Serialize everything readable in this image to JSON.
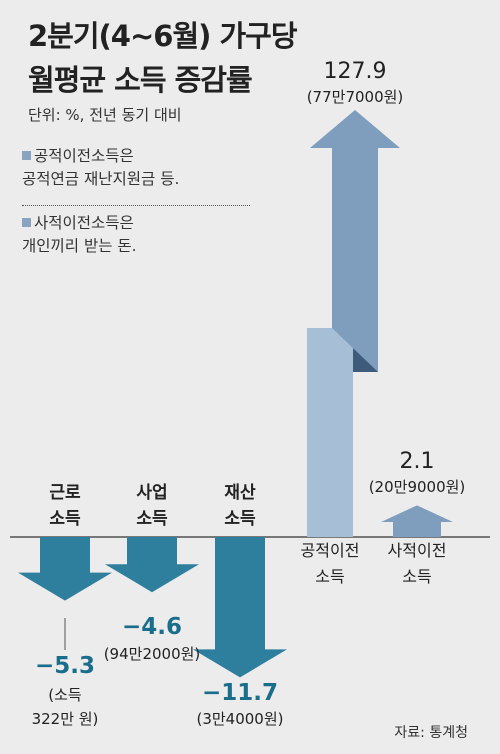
{
  "title_line1": "2분기(4~6월) 가구당",
  "title_line2": "월평균 소득 증감률",
  "unit": "단위: %, 전년 동기 대비",
  "notes": [
    {
      "lines": [
        "공적이전소득은",
        "공적연금 재난지원금 등."
      ]
    },
    {
      "lines": [
        "사적이전소득은",
        "개인끼리 받는 돈."
      ]
    }
  ],
  "source": "자료: 통계청",
  "colors": {
    "negative": "#2e7f9e",
    "positive_arrow": "#7f9ebe",
    "positive_dark": "#3e5b7c",
    "positive_light": "#a6bfd6",
    "value_negative": "#1b6d8c",
    "text": "#222222"
  },
  "chart_data": {
    "type": "bar",
    "categories": [
      {
        "line1": "근로",
        "line2": "소득"
      },
      {
        "line1": "사업",
        "line2": "소득"
      },
      {
        "line1": "재산",
        "line2": "소득"
      },
      {
        "line1": "공적이전",
        "line2": "소득"
      },
      {
        "line1": "사적이전",
        "line2": "소득"
      }
    ],
    "values": [
      -5.3,
      -4.6,
      -11.7,
      127.9,
      2.1
    ],
    "value_labels": [
      "−5.3",
      "−4.6",
      "−11.7",
      "127.9",
      "2.1"
    ],
    "amounts": [
      [
        "(소득",
        "322만 원)"
      ],
      [
        "(94만2000원)"
      ],
      [
        "(3만4000원)"
      ],
      [
        "(77만7000원)"
      ],
      [
        "(20만9000원)"
      ]
    ],
    "xlabel": "",
    "ylabel": "",
    "axis_break": true
  }
}
